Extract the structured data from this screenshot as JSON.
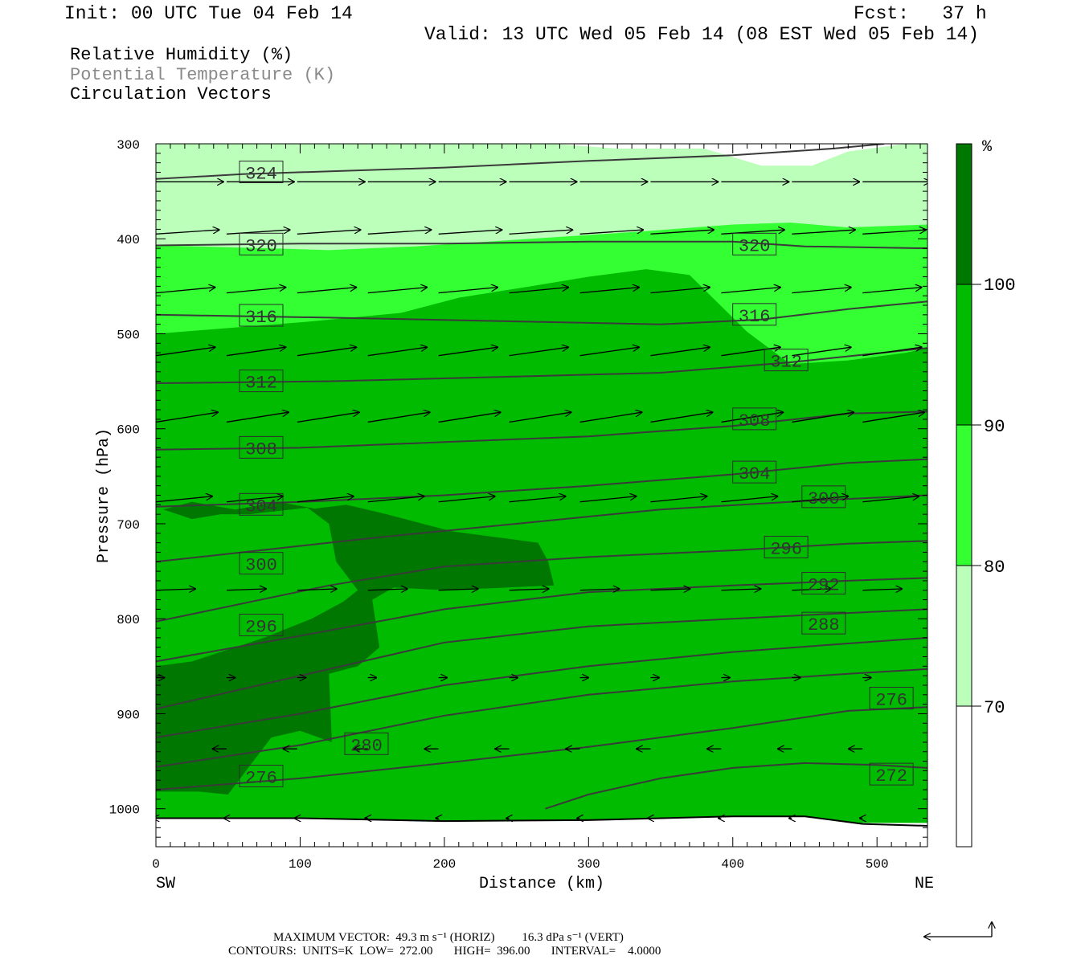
{
  "header": {
    "init": "Init: 00 UTC Tue 04 Feb 14",
    "fcst": "Fcst:   37 h",
    "valid": "Valid: 13 UTC Wed 05 Feb 14 (08 EST Wed 05 Feb 14)"
  },
  "legend": {
    "line1": "Relative Humidity (%)",
    "line2": "Potential Temperature (K)",
    "line3": "Circulation Vectors"
  },
  "footer": {
    "max_vector": "MAXIMUM VECTOR:  49.3 m s⁻¹ (HORIZ)         16.3 dPa s⁻¹ (VERT)",
    "contours": "CONTOURS:  UNITS=K  LOW=  272.00       HIGH=  396.00       INTERVAL=    4.0000"
  },
  "chart_data": {
    "type": "cross-section",
    "xlabel": "Distance (km)",
    "ylabel": "Pressure (hPa)",
    "x_ticks": [
      0,
      100,
      200,
      300,
      400,
      500
    ],
    "y_ticks": [
      300,
      400,
      500,
      600,
      700,
      800,
      900,
      1000
    ],
    "xlim": [
      0,
      535
    ],
    "ylim": [
      300,
      1040
    ],
    "y_inverted": true,
    "x_end_labels": {
      "left": "SW",
      "right": "NE"
    },
    "colorbar": {
      "unit": "%",
      "ticks": [
        70,
        80,
        90,
        100
      ],
      "bins": [
        {
          "range": [
            60,
            70
          ],
          "color": "#ffffff"
        },
        {
          "range": [
            70,
            80
          ],
          "color": "#bbffbb"
        },
        {
          "range": [
            80,
            90
          ],
          "color": "#33ff33"
        },
        {
          "range": [
            90,
            100
          ],
          "color": "#00bb00"
        },
        {
          "range": [
            100,
            110
          ],
          "color": "#007700"
        }
      ]
    },
    "rh_regions": [
      {
        "level": 70,
        "color": "#bbffbb",
        "boundary": [
          [
            0,
            300
          ],
          [
            275,
            300
          ],
          [
            320,
            305
          ],
          [
            380,
            305
          ],
          [
            420,
            323
          ],
          [
            455,
            323
          ],
          [
            480,
            308
          ],
          [
            520,
            300
          ],
          [
            535,
            300
          ],
          [
            535,
            1010
          ],
          [
            0,
            1010
          ]
        ]
      },
      {
        "level": 80,
        "color": "#33ff33",
        "boundary": [
          [
            0,
            407
          ],
          [
            80,
            410
          ],
          [
            120,
            412
          ],
          [
            180,
            408
          ],
          [
            260,
            400
          ],
          [
            340,
            392
          ],
          [
            400,
            385
          ],
          [
            440,
            383
          ],
          [
            480,
            388
          ],
          [
            535,
            385
          ],
          [
            535,
            1010
          ],
          [
            0,
            1010
          ]
        ]
      },
      {
        "level": 90,
        "color": "#00bb00",
        "boundary": [
          [
            0,
            500
          ],
          [
            100,
            488
          ],
          [
            170,
            478
          ],
          [
            210,
            462
          ],
          [
            260,
            450
          ],
          [
            300,
            440
          ],
          [
            340,
            432
          ],
          [
            370,
            438
          ],
          [
            390,
            468
          ],
          [
            410,
            498
          ],
          [
            440,
            532
          ],
          [
            480,
            528
          ],
          [
            520,
            520
          ],
          [
            535,
            515
          ],
          [
            535,
            1015
          ],
          [
            0,
            1015
          ]
        ]
      },
      {
        "level": 100,
        "color": "#007700",
        "boundary": [
          [
            5,
            685
          ],
          [
            25,
            677
          ],
          [
            55,
            685
          ],
          [
            85,
            677
          ],
          [
            110,
            684
          ],
          [
            132,
            680
          ],
          [
            160,
            690
          ],
          [
            205,
            708
          ],
          [
            265,
            720
          ],
          [
            272,
            740
          ],
          [
            276,
            765
          ],
          [
            200,
            770
          ],
          [
            165,
            767
          ],
          [
            150,
            780
          ],
          [
            155,
            830
          ],
          [
            140,
            850
          ],
          [
            120,
            858
          ],
          [
            122,
            930
          ],
          [
            100,
            918
          ],
          [
            80,
            925
          ],
          [
            65,
            955
          ],
          [
            50,
            985
          ],
          [
            30,
            982
          ],
          [
            0,
            982
          ],
          [
            0,
            850
          ],
          [
            25,
            845
          ],
          [
            75,
            820
          ],
          [
            108,
            800
          ],
          [
            130,
            782
          ],
          [
            140,
            770
          ],
          [
            125,
            740
          ],
          [
            120,
            700
          ],
          [
            105,
            683
          ],
          [
            65,
            690
          ],
          [
            45,
            690
          ],
          [
            25,
            695
          ]
        ]
      }
    ],
    "theta_contours": [
      {
        "value": 324,
        "points": [
          [
            0,
            337
          ],
          [
            60,
            332
          ],
          [
            200,
            325
          ],
          [
            300,
            318
          ],
          [
            400,
            312
          ],
          [
            470,
            305
          ],
          [
            505,
            300
          ]
        ],
        "label_x": 73
      },
      {
        "value": 320,
        "points": [
          [
            0,
            407
          ],
          [
            100,
            405
          ],
          [
            200,
            405
          ],
          [
            300,
            403
          ],
          [
            400,
            403
          ],
          [
            450,
            408
          ],
          [
            535,
            410
          ]
        ],
        "label_x": 73
      },
      {
        "value": 316,
        "points": [
          [
            0,
            480
          ],
          [
            120,
            483
          ],
          [
            250,
            487
          ],
          [
            350,
            490
          ],
          [
            420,
            485
          ],
          [
            480,
            474
          ],
          [
            535,
            466
          ]
        ],
        "label_x": 73
      },
      {
        "value": 312,
        "points": [
          [
            0,
            552
          ],
          [
            120,
            550
          ],
          [
            250,
            545
          ],
          [
            350,
            541
          ],
          [
            440,
            530
          ],
          [
            535,
            515
          ]
        ],
        "label_x": 73
      },
      {
        "value": 308,
        "points": [
          [
            0,
            622
          ],
          [
            100,
            620
          ],
          [
            200,
            614
          ],
          [
            300,
            608
          ],
          [
            400,
            597
          ],
          [
            480,
            584
          ],
          [
            535,
            582
          ]
        ],
        "label_x": 73
      },
      {
        "value": 304,
        "points": [
          [
            0,
            682
          ],
          [
            100,
            677
          ],
          [
            200,
            670
          ],
          [
            300,
            660
          ],
          [
            400,
            648
          ],
          [
            480,
            636
          ],
          [
            535,
            632
          ]
        ],
        "label_x": 73
      },
      {
        "value": 300,
        "points": [
          [
            0,
            740
          ],
          [
            150,
            715
          ],
          [
            250,
            700
          ],
          [
            350,
            685
          ],
          [
            450,
            676
          ],
          [
            535,
            670
          ]
        ],
        "label_x": 73
      },
      {
        "value": 296,
        "points": [
          [
            0,
            803
          ],
          [
            120,
            765
          ],
          [
            200,
            745
          ],
          [
            300,
            735
          ],
          [
            400,
            728
          ],
          [
            480,
            721
          ],
          [
            535,
            718
          ]
        ],
        "label_x": 73
      },
      {
        "value": 292,
        "points": [
          [
            0,
            845
          ],
          [
            100,
            818
          ],
          [
            200,
            790
          ],
          [
            300,
            772
          ],
          [
            400,
            765
          ],
          [
            480,
            760
          ],
          [
            535,
            757
          ]
        ],
        "label_x": 460
      },
      {
        "value": 288,
        "points": [
          [
            0,
            895
          ],
          [
            100,
            860
          ],
          [
            200,
            825
          ],
          [
            300,
            808
          ],
          [
            400,
            800
          ],
          [
            480,
            794
          ],
          [
            535,
            790
          ]
        ],
        "label_x": 460
      },
      {
        "value": 284,
        "points": [
          [
            0,
            925
          ],
          [
            100,
            900
          ],
          [
            200,
            870
          ],
          [
            300,
            850
          ],
          [
            400,
            835
          ],
          [
            480,
            826
          ],
          [
            535,
            820
          ]
        ],
        "label_x": null
      },
      {
        "value": 280,
        "points": [
          [
            0,
            956
          ],
          [
            100,
            933
          ],
          [
            200,
            902
          ],
          [
            300,
            880
          ],
          [
            400,
            866
          ],
          [
            480,
            858
          ],
          [
            535,
            853
          ]
        ],
        "label_x": 146
      },
      {
        "value": 276,
        "points": [
          [
            0,
            980
          ],
          [
            100,
            968
          ],
          [
            200,
            952
          ],
          [
            300,
            935
          ],
          [
            400,
            915
          ],
          [
            480,
            897
          ],
          [
            535,
            893
          ]
        ],
        "label_x": 73
      },
      {
        "value": 272,
        "points": [
          [
            270,
            1000
          ],
          [
            300,
            985
          ],
          [
            350,
            968
          ],
          [
            400,
            957
          ],
          [
            450,
            952
          ],
          [
            500,
            954
          ],
          [
            535,
            957
          ]
        ],
        "label_x": 508
      }
    ],
    "theta_labels": [
      {
        "value": "324",
        "x": 73,
        "p": 330
      },
      {
        "value": "320",
        "x": 73,
        "p": 406
      },
      {
        "value": "320",
        "x": 415,
        "p": 406
      },
      {
        "value": "316",
        "x": 73,
        "p": 481
      },
      {
        "value": "316",
        "x": 415,
        "p": 480
      },
      {
        "value": "312",
        "x": 73,
        "p": 550
      },
      {
        "value": "312",
        "x": 437,
        "p": 528
      },
      {
        "value": "308",
        "x": 73,
        "p": 620
      },
      {
        "value": "308",
        "x": 415,
        "p": 590
      },
      {
        "value": "304",
        "x": 73,
        "p": 680
      },
      {
        "value": "304",
        "x": 415,
        "p": 646
      },
      {
        "value": "300",
        "x": 73,
        "p": 742
      },
      {
        "value": "300",
        "x": 463,
        "p": 672
      },
      {
        "value": "296",
        "x": 73,
        "p": 807
      },
      {
        "value": "296",
        "x": 437,
        "p": 725
      },
      {
        "value": "292",
        "x": 463,
        "p": 763
      },
      {
        "value": "288",
        "x": 463,
        "p": 805
      },
      {
        "value": "280",
        "x": 146,
        "p": 932
      },
      {
        "value": "276",
        "x": 73,
        "p": 966
      },
      {
        "value": "276",
        "x": 510,
        "p": 884
      },
      {
        "value": "272",
        "x": 510,
        "p": 964
      }
    ],
    "vector_rows": [
      {
        "p": 340,
        "u": 48,
        "v": 0
      },
      {
        "p": 395,
        "u": 45,
        "v": -3
      },
      {
        "p": 457,
        "u": 42,
        "v": -4
      },
      {
        "p": 523,
        "u": 42,
        "v": -6
      },
      {
        "p": 593,
        "u": 44,
        "v": -7
      },
      {
        "p": 677,
        "u": 40,
        "v": -4
      },
      {
        "p": 770,
        "u": 28,
        "v": -1
      },
      {
        "p": 862,
        "u": 6,
        "v": 0
      },
      {
        "p": 937,
        "u": -10,
        "v": 0
      },
      {
        "p": 1010,
        "u": -2,
        "v": 0
      }
    ],
    "vector_x": [
      0,
      49,
      98,
      147,
      196,
      245,
      294,
      343,
      392,
      441,
      490
    ]
  },
  "colorbar_labels": {
    "unit": "%",
    "t100": "100",
    "t90": "90",
    "t80": "80",
    "t70": "70"
  },
  "axis_text": {
    "xlabel": "Distance (km)",
    "ylabel": "Pressure (hPa)",
    "sw": "SW",
    "ne": "NE"
  }
}
